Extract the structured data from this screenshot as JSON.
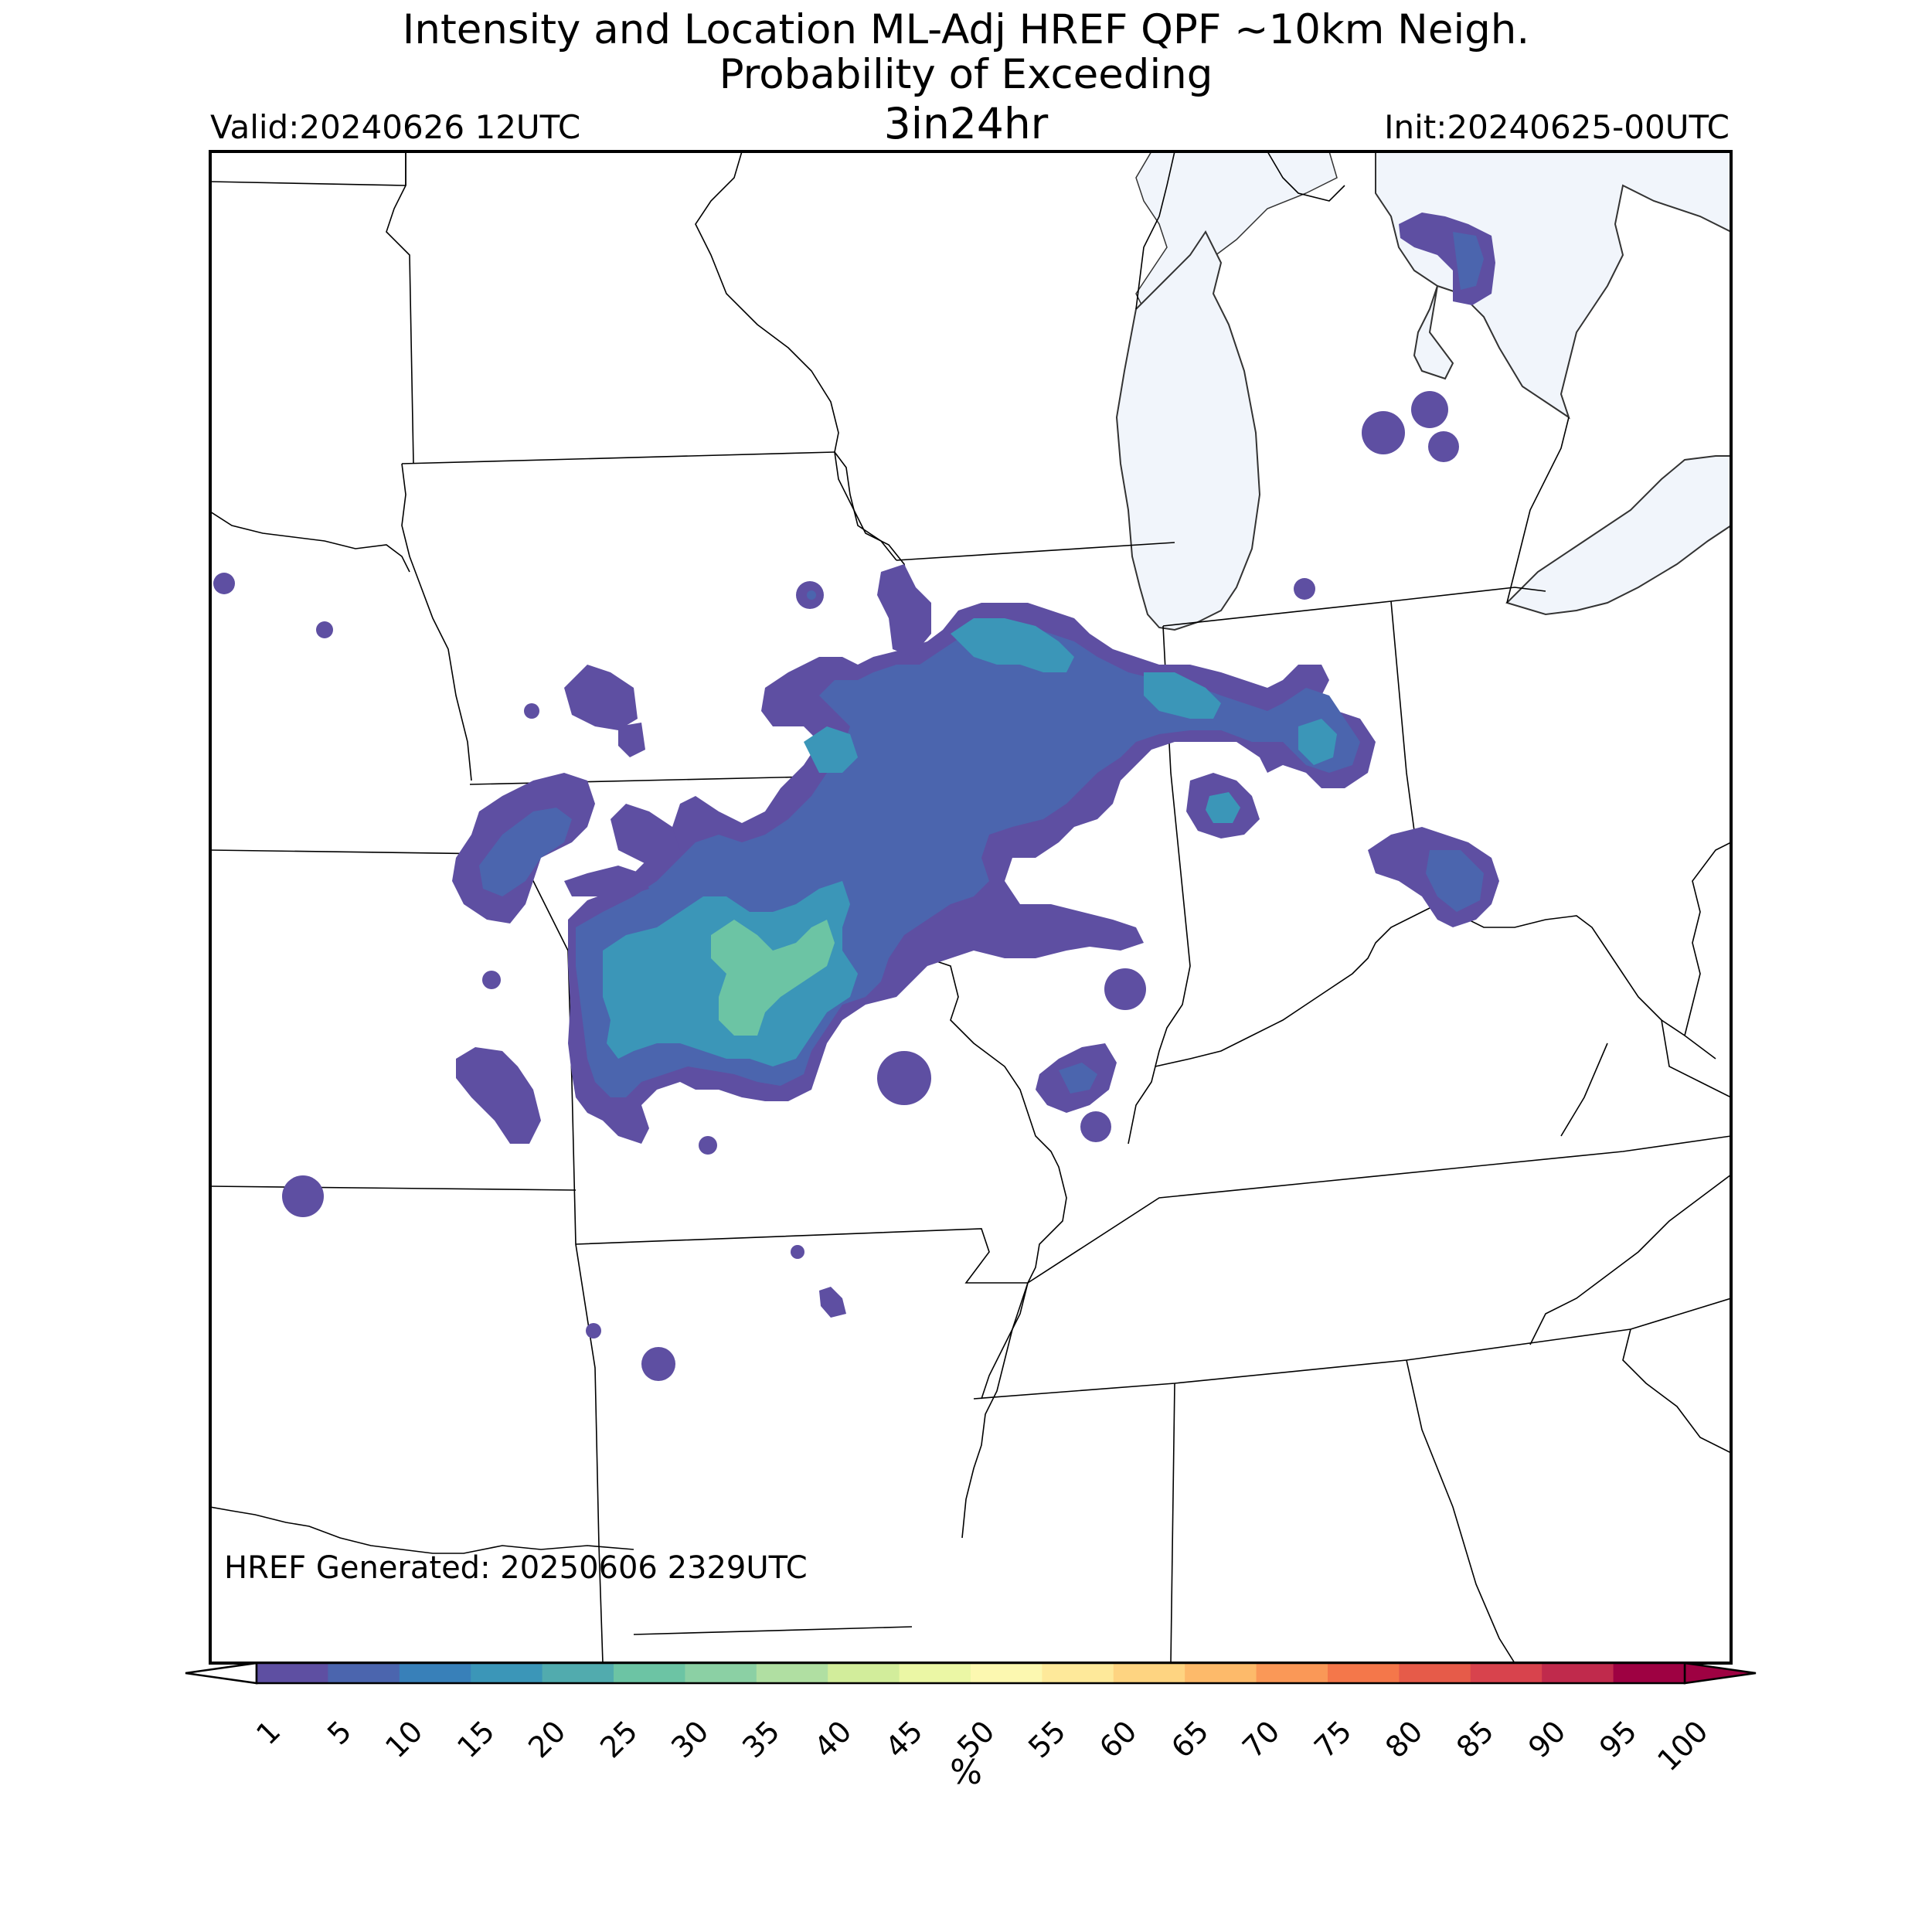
{
  "title": {
    "line1": "Intensity and Location ML-Adj HREF QPF ~10km Neigh.",
    "line2": "Probability of Exceeding",
    "line3": "3in24hr"
  },
  "valid_label": "Valid:20240626 12UTC",
  "init_label": "Init:20240625-00UTC",
  "generated_label": "HREF Generated: 20250606 2329UTC",
  "colorbar": {
    "unit": "%",
    "ticks": [
      "1",
      "5",
      "10",
      "15",
      "20",
      "25",
      "30",
      "35",
      "40",
      "45",
      "50",
      "55",
      "60",
      "65",
      "70",
      "75",
      "80",
      "85",
      "90",
      "95",
      "100"
    ],
    "colors": [
      "#5e4fa2",
      "#4b65ae",
      "#3880b9",
      "#3b96b8",
      "#51abae",
      "#6cc4a4",
      "#8bd0a4",
      "#b0dfa2",
      "#d2ed9b",
      "#ebf7a5",
      "#fcf8b0",
      "#fee99a",
      "#fed481",
      "#fdba6a",
      "#fa9857",
      "#f4774a",
      "#e65b49",
      "#d8434d",
      "#c02a4c",
      "#9e0142"
    ],
    "under_color": "#ffffff",
    "over_color": "#9e0142"
  },
  "map": {
    "water_color": "#f1f5fb",
    "precip_levels": [
      "#5e4fa2",
      "#4b65ae",
      "#3b96b8",
      "#6cc4a4"
    ]
  }
}
